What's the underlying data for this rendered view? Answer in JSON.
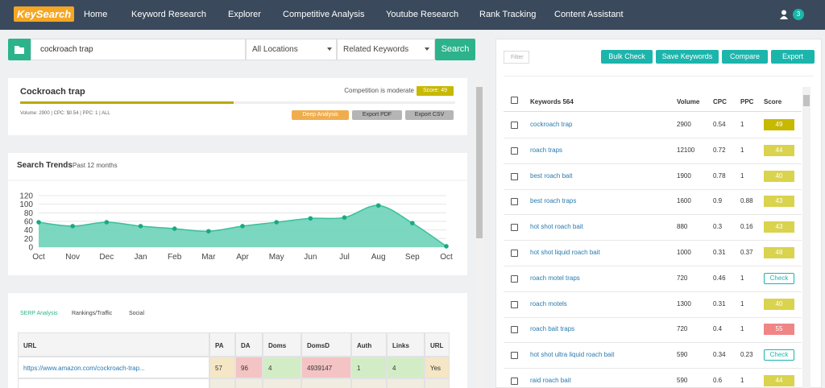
{
  "nav": {
    "logo": "KeySearch",
    "items": [
      "Home",
      "Keyword Research",
      "Explorer",
      "Competitive Analysis",
      "Youtube Research",
      "Rank Tracking",
      "Content Assistant"
    ],
    "badge": "3"
  },
  "search": {
    "query": "cockroach trap",
    "location": "All Locations",
    "mode": "Related Keywords",
    "button": "Search"
  },
  "summary": {
    "title": "Cockroach trap",
    "competition": "Competition is moderate",
    "score": {
      "value": 49,
      "label": "Score: 49"
    },
    "meta": "Volume: 2900 | CPC: $0.54 | PPC: 1 | ALL",
    "buttons": [
      "Deep Analysis",
      "Export PDF",
      "Export CSV"
    ]
  },
  "chart_data": {
    "type": "area",
    "title": "Search Trends",
    "subtitle": "Past 12 months",
    "categories": [
      "Oct",
      "Nov",
      "Dec",
      "Jan",
      "Feb",
      "Mar",
      "Apr",
      "May",
      "Jun",
      "Jul",
      "Aug",
      "Sep",
      "Oct"
    ],
    "values": [
      58,
      49,
      58,
      49,
      43,
      37,
      49,
      58,
      67,
      69,
      97,
      56,
      2
    ],
    "color": "#6dd3b8",
    "line_color": "#3cbf9c",
    "marker_color": "#1aa982",
    "ylim": [
      0,
      120
    ],
    "yticks": [
      0,
      20,
      40,
      60,
      80,
      100,
      120
    ],
    "grid": true
  },
  "serp": {
    "tabs": [
      "SERP Analysis",
      "Rankings/Traffic",
      "Social"
    ],
    "columns": [
      "URL",
      "PA",
      "DA",
      "Doms",
      "DomsD",
      "Auth",
      "Links",
      "URL"
    ],
    "rows": [
      [
        "https://www.amazon.com/cockroach-trap...",
        57,
        96,
        4,
        4939147,
        1,
        4,
        "Yes"
      ]
    ]
  },
  "keywords": {
    "filter": "Filter",
    "buttons": [
      "Bulk Check",
      "Save Keywords",
      "Compare",
      "Export"
    ],
    "columns": [
      "Keywords 564",
      "Volume",
      "CPC",
      "PPC",
      "Score"
    ],
    "rows": [
      [
        "cockroach trap",
        2900,
        0.54,
        1,
        49
      ],
      [
        "roach traps",
        12100,
        0.72,
        1,
        44
      ],
      [
        "best roach bait",
        1900,
        0.78,
        1,
        40
      ],
      [
        "best roach traps",
        1600,
        0.9,
        0.88,
        43
      ],
      [
        "hot shot roach bait",
        880,
        0.3,
        0.16,
        43
      ],
      [
        "hot shot liquid roach bait",
        1000,
        0.31,
        0.37,
        48
      ],
      [
        "roach motel traps",
        720,
        0.46,
        1,
        "Check"
      ],
      [
        "roach motels",
        1300,
        0.31,
        1,
        40
      ],
      [
        "roach bait traps",
        720,
        0.4,
        1,
        55
      ],
      [
        "hot shot ultra liquid roach bait",
        590,
        0.34,
        0.23,
        "Check"
      ],
      [
        "raid roach bait",
        590,
        0.6,
        1,
        44
      ]
    ]
  }
}
